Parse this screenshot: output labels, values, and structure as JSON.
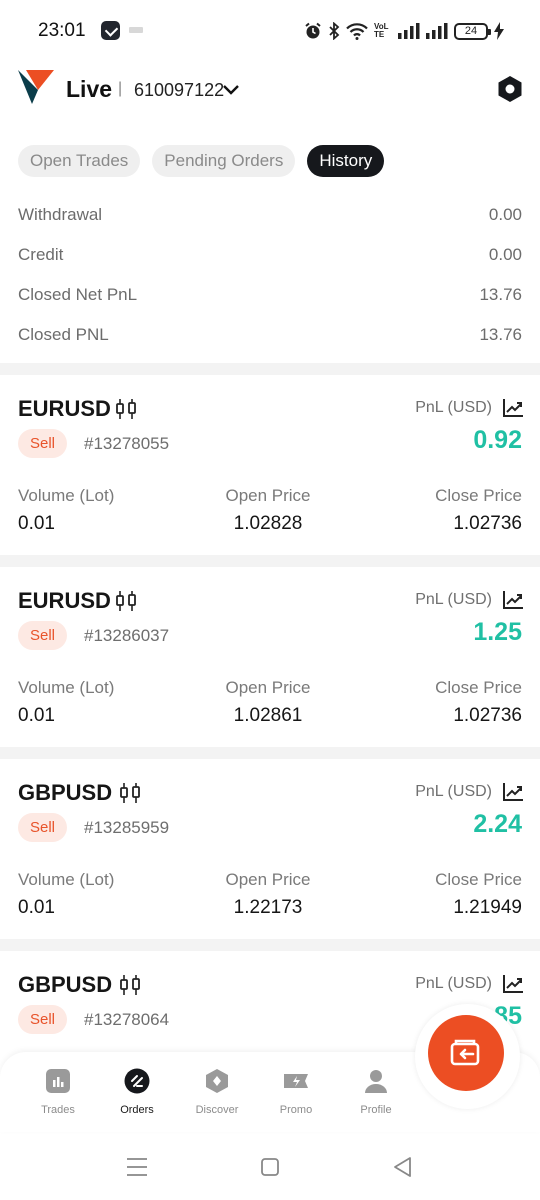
{
  "status_bar": {
    "time": "23:01",
    "battery": "24",
    "network_label": "VoLTE"
  },
  "header": {
    "account_type": "Live",
    "separator": "|",
    "account_number": "610097122"
  },
  "tabs": [
    {
      "label": "Open Trades",
      "active": false
    },
    {
      "label": "Pending Orders",
      "active": false
    },
    {
      "label": "History",
      "active": true
    }
  ],
  "summary": [
    {
      "label": "Withdrawal",
      "value": "0.00"
    },
    {
      "label": "Credit",
      "value": "0.00"
    },
    {
      "label": "Closed Net PnL",
      "value": "13.76"
    },
    {
      "label": "Closed PNL",
      "value": "13.76"
    }
  ],
  "trades": [
    {
      "symbol": "EURUSD",
      "side": "Sell",
      "order_id": "#13278055",
      "pnl_label": "PnL (USD)",
      "pnl": "0.92",
      "volume_label": "Volume (Lot)",
      "volume": "0.01",
      "open_label": "Open Price",
      "open_price": "1.02828",
      "close_label": "Close Price",
      "close_price": "1.02736"
    },
    {
      "symbol": "EURUSD",
      "side": "Sell",
      "order_id": "#13286037",
      "pnl_label": "PnL (USD)",
      "pnl": "1.25",
      "volume_label": "Volume (Lot)",
      "volume": "0.01",
      "open_label": "Open Price",
      "open_price": "1.02861",
      "close_label": "Close Price",
      "close_price": "1.02736"
    },
    {
      "symbol": "GBPUSD",
      "side": "Sell",
      "order_id": "#13285959",
      "pnl_label": "PnL (USD)",
      "pnl": "2.24",
      "volume_label": "Volume (Lot)",
      "volume": "0.01",
      "open_label": "Open Price",
      "open_price": "1.22173",
      "close_label": "Close Price",
      "close_price": "1.21949"
    },
    {
      "symbol": "GBPUSD",
      "side": "Sell",
      "order_id": "#13278064",
      "pnl_label": "PnL (USD)",
      "pnl": "1.85"
    }
  ],
  "bottom_nav": [
    {
      "label": "Trades",
      "icon": "chart-icon"
    },
    {
      "label": "Orders",
      "icon": "orders-icon",
      "active": true
    },
    {
      "label": "Discover",
      "icon": "discover-icon"
    },
    {
      "label": "Promo",
      "icon": "promo-icon"
    },
    {
      "label": "Profile",
      "icon": "profile-icon"
    }
  ],
  "colors": {
    "accent": "#ec4e23",
    "profit": "#20c0a4",
    "sell_bg": "#fde9e3",
    "sell_text": "#e8532a",
    "active_tab": "#16181c"
  }
}
